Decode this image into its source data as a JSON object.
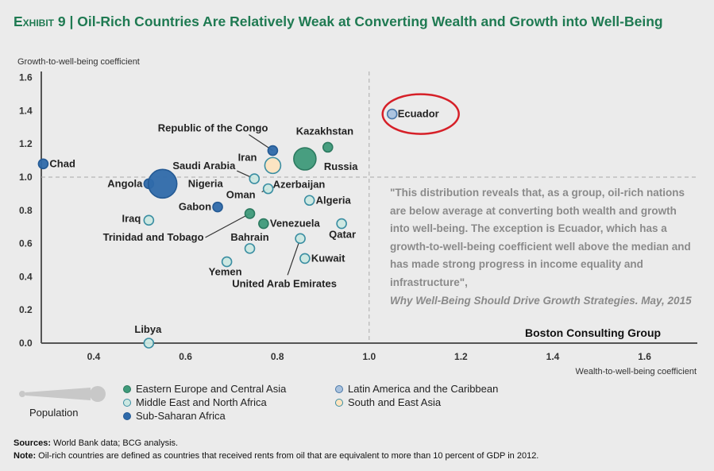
{
  "chart_data": {
    "type": "scatter",
    "title_prefix": "Exhibit 9",
    "title": "Oil-Rich Countries Are Relatively Weak at Converting Wealth and Growth into Well-Being",
    "xlabel": "Wealth-to-well-being coefficient",
    "ylabel": "Growth-to-well-being coefficient",
    "xlim": [
      0.286,
      1.73
    ],
    "ylim": [
      0,
      1.6
    ],
    "xticks": [
      "0.4",
      "0.6",
      "0.8",
      "1.0",
      "1.2",
      "1.4",
      "1.6"
    ],
    "yticks": [
      "0.0",
      "0.2",
      "0.4",
      "0.6",
      "0.8",
      "1.0",
      "1.2",
      "1.4",
      "1.6"
    ],
    "reference_lines": {
      "x": 1.0,
      "y": 1.0
    },
    "regions": {
      "eeca": {
        "name": "Eastern Europe and Central Asia",
        "fill": "#3f9a7a",
        "stroke": "#2c7a60"
      },
      "mena": {
        "name": "Middle East and North Africa",
        "fill": "#cce8e2",
        "stroke": "#3a8ea2"
      },
      "ssa": {
        "name": "Sub-Saharan Africa",
        "fill": "#2f6aaa",
        "stroke": "#245a94"
      },
      "lac": {
        "name": "Latin America and the Caribbean",
        "fill": "#a9c2de",
        "stroke": "#4a78a8"
      },
      "sea": {
        "name": "South and East Asia",
        "fill": "#fde4c0",
        "stroke": "#3a8ea2"
      }
    },
    "points": [
      {
        "name": "Chad",
        "x": 0.29,
        "y": 1.08,
        "region": "ssa",
        "size": "small"
      },
      {
        "name": "Angola",
        "x": 0.52,
        "y": 0.96,
        "region": "ssa",
        "size": "small"
      },
      {
        "name": "Nigeria",
        "x": 0.55,
        "y": 0.96,
        "region": "ssa",
        "size": "xlarge"
      },
      {
        "name": "Gabon",
        "x": 0.67,
        "y": 0.82,
        "region": "ssa",
        "size": "small"
      },
      {
        "name": "Republic of the Congo",
        "x": 0.79,
        "y": 1.16,
        "region": "ssa",
        "size": "small"
      },
      {
        "name": "Iran",
        "x": 0.79,
        "y": 1.07,
        "region": "mena",
        "size": "medium",
        "note": "sea-colored"
      },
      {
        "name": "Kazakhstan",
        "x": 0.91,
        "y": 1.18,
        "region": "eeca",
        "size": "small"
      },
      {
        "name": "Russia",
        "x": 0.86,
        "y": 1.11,
        "region": "eeca",
        "size": "large"
      },
      {
        "name": "Saudi Arabia",
        "x": 0.75,
        "y": 0.99,
        "region": "mena",
        "size": "small"
      },
      {
        "name": "Oman",
        "x": 0.78,
        "y": 0.93,
        "region": "mena",
        "size": "small"
      },
      {
        "name": "Azerbaijan",
        "x": 0.78,
        "y": 0.93,
        "region": "eeca",
        "size": "none"
      },
      {
        "name": "Algeria",
        "x": 0.87,
        "y": 0.86,
        "region": "mena",
        "size": "small"
      },
      {
        "name": "Iraq",
        "x": 0.52,
        "y": 0.74,
        "region": "mena",
        "size": "small"
      },
      {
        "name": "Trinidad and Tobago",
        "x": 0.74,
        "y": 0.78,
        "region": "eeca",
        "size": "small"
      },
      {
        "name": "Venezuela",
        "x": 0.77,
        "y": 0.72,
        "region": "eeca",
        "size": "small"
      },
      {
        "name": "Qatar",
        "x": 0.94,
        "y": 0.72,
        "region": "mena",
        "size": "small"
      },
      {
        "name": "Bahrain",
        "x": 0.74,
        "y": 0.57,
        "region": "mena",
        "size": "small"
      },
      {
        "name": "United Arab Emirates",
        "x": 0.85,
        "y": 0.63,
        "region": "mena",
        "size": "small"
      },
      {
        "name": "Kuwait",
        "x": 0.86,
        "y": 0.51,
        "region": "mena",
        "size": "small"
      },
      {
        "name": "Yemen",
        "x": 0.69,
        "y": 0.49,
        "region": "mena",
        "size": "small"
      },
      {
        "name": "Libya",
        "x": 0.52,
        "y": 0.0,
        "region": "mena",
        "size": "small"
      },
      {
        "name": "Ecuador",
        "x": 1.05,
        "y": 1.38,
        "region": "lac",
        "size": "small",
        "highlighted": true
      }
    ]
  },
  "legend": {
    "population_label": "Population",
    "items": [
      "Eastern Europe and Central Asia",
      "Latin America and the Caribbean",
      "Middle East and North Africa",
      "South and East Asia",
      "Sub-Saharan Africa"
    ]
  },
  "quote": {
    "text": "\"This distribution reveals that, as a group, oil-rich nations are below average at converting both wealth and growth into well-being. The exception is Ecuador, which has a growth-to-well-being coefficient well above the median and has made strong progress in income equality and infrastructure\",",
    "source": "Why Well-Being Should Drive Growth Strategies. May, 2015",
    "org": "Boston Consulting Group"
  },
  "notes": {
    "sources_label": "Sources:",
    "sources": "World Bank data; BCG analysis.",
    "note_label": "Note:",
    "note": "Oil-rich countries are defined as countries that received rents from oil that are equivalent to more than 10 percent of GDP in 2012."
  }
}
